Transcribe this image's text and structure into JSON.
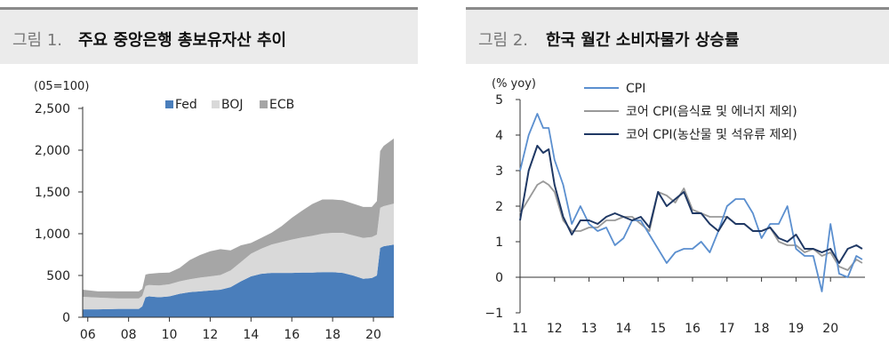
{
  "left": {
    "fig_label": "그림 1.",
    "title": "주요 중앙은행 총보유자산 추이",
    "unit": "(05=100)",
    "chart_data": {
      "type": "area",
      "stacked": true,
      "title": "주요 중앙은행 총보유자산 추이",
      "unit_label": "(05=100)",
      "x_ticks": [
        "06",
        "08",
        "10",
        "12",
        "14",
        "16",
        "18",
        "20"
      ],
      "x_tick_values": [
        2006,
        2008,
        2010,
        2012,
        2014,
        2016,
        2018,
        2020
      ],
      "y_ticks": [
        "0",
        "500",
        "1,000",
        "1,500",
        "2,000",
        "2,500"
      ],
      "y_tick_values": [
        0,
        500,
        1000,
        1500,
        2000,
        2500
      ],
      "xlim": [
        2005.75,
        2021.0
      ],
      "ylim": [
        0,
        2500
      ],
      "legend_position": "top",
      "x": [
        2005.75,
        2006.5,
        2007.5,
        2008.5,
        2008.67,
        2008.83,
        2009.0,
        2009.5,
        2010.0,
        2010.5,
        2011.0,
        2011.5,
        2012.0,
        2012.5,
        2013.0,
        2013.5,
        2014.0,
        2014.5,
        2015.0,
        2015.5,
        2016.0,
        2016.5,
        2017.0,
        2017.5,
        2018.0,
        2018.5,
        2019.0,
        2019.5,
        2019.92,
        2020.17,
        2020.33,
        2020.5,
        2021.0
      ],
      "series": [
        {
          "name": "Fed",
          "color": "#4a7ebb",
          "values": [
            95,
            95,
            100,
            100,
            130,
            240,
            250,
            240,
            250,
            280,
            300,
            310,
            320,
            330,
            360,
            430,
            490,
            520,
            530,
            530,
            530,
            535,
            535,
            540,
            540,
            530,
            500,
            460,
            470,
            500,
            830,
            850,
            870
          ]
        },
        {
          "name": "BOJ",
          "color": "#d9d9d9",
          "values": [
            150,
            140,
            125,
            125,
            125,
            135,
            135,
            140,
            145,
            150,
            155,
            165,
            170,
            175,
            200,
            230,
            270,
            300,
            340,
            370,
            400,
            420,
            440,
            460,
            470,
            480,
            480,
            490,
            490,
            490,
            480,
            480,
            490
          ]
        },
        {
          "name": "ECB",
          "color": "#a6a6a6",
          "values": [
            85,
            75,
            85,
            85,
            85,
            135,
            135,
            150,
            140,
            160,
            230,
            270,
            300,
            310,
            240,
            200,
            130,
            130,
            140,
            190,
            260,
            320,
            380,
            410,
            400,
            390,
            380,
            370,
            360,
            400,
            680,
            720,
            780
          ]
        }
      ]
    }
  },
  "right": {
    "fig_label": "그림 2.",
    "title": "한국 월간 소비자물가 상승률",
    "unit": "(% yoy)",
    "chart_data": {
      "type": "line",
      "title": "한국 월간 소비자물가 상승률",
      "unit_label": "(% yoy)",
      "x_ticks": [
        "11",
        "12",
        "13",
        "14",
        "15",
        "16",
        "17",
        "18",
        "19",
        "20"
      ],
      "x_tick_values": [
        2011,
        2012,
        2013,
        2014,
        2015,
        2016,
        2017,
        2018,
        2019,
        2020
      ],
      "y_ticks": [
        "−1",
        "0",
        "1",
        "2",
        "3",
        "4",
        "5"
      ],
      "y_tick_values": [
        -1,
        0,
        1,
        2,
        3,
        4,
        5
      ],
      "xlim": [
        2011.0,
        2021.0
      ],
      "ylim": [
        -1,
        5
      ],
      "legend_position": "top-center",
      "x": [
        2011.0,
        2011.25,
        2011.5,
        2011.67,
        2011.83,
        2012.0,
        2012.25,
        2012.5,
        2012.75,
        2013.0,
        2013.25,
        2013.5,
        2013.75,
        2014.0,
        2014.25,
        2014.5,
        2014.75,
        2015.0,
        2015.25,
        2015.5,
        2015.75,
        2016.0,
        2016.25,
        2016.5,
        2016.75,
        2017.0,
        2017.25,
        2017.5,
        2017.75,
        2018.0,
        2018.25,
        2018.5,
        2018.75,
        2019.0,
        2019.25,
        2019.5,
        2019.75,
        2020.0,
        2020.25,
        2020.5,
        2020.75,
        2020.92
      ],
      "series": [
        {
          "name": "CPI",
          "color": "#5b8fcf",
          "values": [
            3.0,
            4.0,
            4.6,
            4.2,
            4.2,
            3.3,
            2.6,
            1.5,
            2.0,
            1.5,
            1.3,
            1.4,
            0.9,
            1.1,
            1.6,
            1.6,
            1.2,
            0.8,
            0.4,
            0.7,
            0.8,
            0.8,
            1.0,
            0.7,
            1.3,
            2.0,
            2.2,
            2.2,
            1.8,
            1.1,
            1.5,
            1.5,
            2.0,
            0.8,
            0.6,
            0.6,
            -0.4,
            1.5,
            0.1,
            0.0,
            0.6,
            0.5
          ]
        },
        {
          "name": "코어 CPI(음식료 및 에너지 제외)",
          "color": "#999999",
          "values": [
            1.8,
            2.2,
            2.6,
            2.7,
            2.6,
            2.4,
            1.6,
            1.3,
            1.3,
            1.4,
            1.4,
            1.6,
            1.6,
            1.7,
            1.7,
            1.5,
            1.3,
            2.4,
            2.3,
            2.1,
            2.5,
            1.9,
            1.8,
            1.7,
            1.7,
            1.7,
            1.5,
            1.5,
            1.3,
            1.3,
            1.4,
            1.0,
            0.9,
            0.9,
            0.7,
            0.8,
            0.6,
            0.7,
            0.3,
            0.2,
            0.5,
            0.4
          ]
        },
        {
          "name": "코어 CPI(농산물 및 석유류 제외)",
          "color": "#1f3864",
          "values": [
            1.6,
            3.0,
            3.7,
            3.5,
            3.6,
            2.6,
            1.7,
            1.2,
            1.6,
            1.6,
            1.5,
            1.7,
            1.8,
            1.7,
            1.6,
            1.7,
            1.4,
            2.4,
            2.0,
            2.2,
            2.4,
            1.8,
            1.8,
            1.5,
            1.3,
            1.7,
            1.5,
            1.5,
            1.3,
            1.3,
            1.4,
            1.1,
            1.0,
            1.2,
            0.8,
            0.8,
            0.7,
            0.8,
            0.4,
            0.8,
            0.9,
            0.8
          ]
        }
      ]
    }
  }
}
